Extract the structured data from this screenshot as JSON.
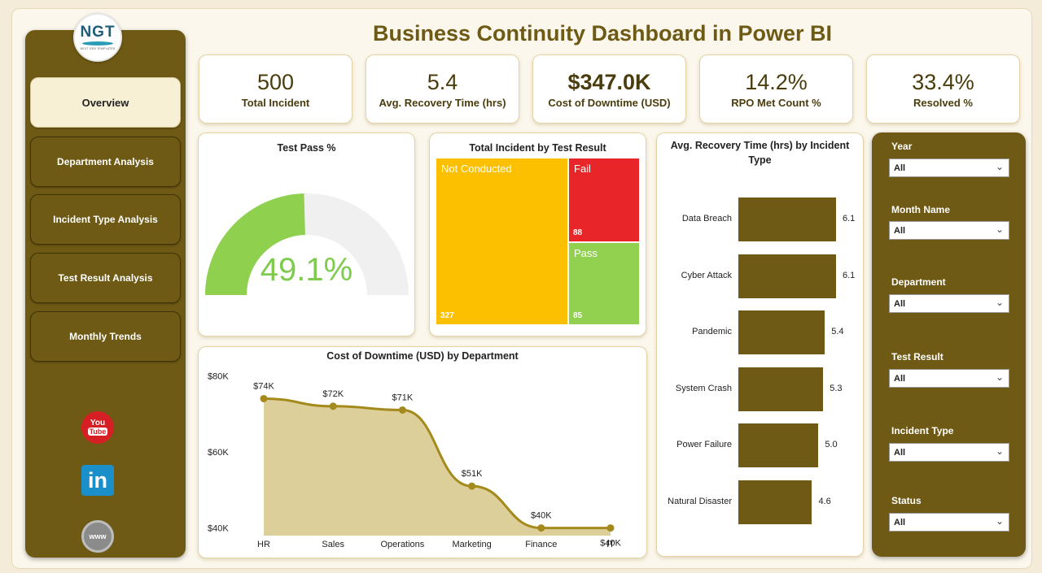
{
  "page": {
    "title": "Business Continuity Dashboard in Power BI"
  },
  "logo": {
    "text": "NGT",
    "subtext": "NEXT GEN TEMPLATES"
  },
  "nav": {
    "items": [
      {
        "label": "Overview",
        "active": true
      },
      {
        "label": "Department Analysis",
        "active": false
      },
      {
        "label": "Incident Type Analysis",
        "active": false
      },
      {
        "label": "Test Result Analysis",
        "active": false
      },
      {
        "label": "Monthly Trends",
        "active": false
      }
    ]
  },
  "social": {
    "youtube_top": "You",
    "youtube_bottom": "Tube",
    "linkedin": "in",
    "web": "www"
  },
  "kpis": [
    {
      "value": "500",
      "label": "Total Incident"
    },
    {
      "value": "5.4",
      "label": "Avg. Recovery Time (hrs)"
    },
    {
      "value": "$347.0K",
      "label": "Cost of Downtime (USD)"
    },
    {
      "value": "14.2%",
      "label": "RPO Met Count %"
    },
    {
      "value": "33.4%",
      "label": "Resolved %"
    }
  ],
  "test_pass": {
    "title": "Test Pass %",
    "value_label": "49.1%",
    "value": 0.491,
    "fill_color": "#8fd14f",
    "track_color": "#f0f0f0"
  },
  "treemap": {
    "title": "Total Incident by Test Result",
    "items": [
      {
        "label": "Not Conducted",
        "value": 327,
        "value_label": "327",
        "color": "#fcc000"
      },
      {
        "label": "Fail",
        "value": 88,
        "value_label": "88",
        "color": "#e8262a"
      },
      {
        "label": "Pass",
        "value": 85,
        "value_label": "85",
        "color": "#92d050"
      }
    ]
  },
  "recovery_chart": {
    "title": "Avg. Recovery Time (hrs) by Incident Type",
    "bar_color": "#6e5a14"
  },
  "downtime_chart": {
    "title": "Cost of Downtime (USD) by Department"
  },
  "chart_data": [
    {
      "type": "bar",
      "title": "Avg. Recovery Time (hrs) by Incident Type",
      "orientation": "horizontal",
      "categories": [
        "Data Breach",
        "Cyber Attack",
        "Pandemic",
        "System Crash",
        "Power Failure",
        "Natural Disaster"
      ],
      "values": [
        6.1,
        6.1,
        5.4,
        5.3,
        5.0,
        4.6
      ],
      "data_labels": [
        "6.1",
        "6.1",
        "5.4",
        "5.3",
        "5.0",
        "4.6"
      ]
    },
    {
      "type": "area",
      "title": "Cost of Downtime (USD) by Department",
      "categories": [
        "HR",
        "Sales",
        "Operations",
        "Marketing",
        "Finance",
        "IT"
      ],
      "values": [
        74000,
        72000,
        71000,
        51000,
        40000,
        40000
      ],
      "data_labels": [
        "$74K",
        "$72K",
        "$71K",
        "$51K",
        "$40K",
        "$40K"
      ],
      "ylim": [
        35000,
        82000
      ],
      "yticks": [
        {
          "value": 80000,
          "label": "$80K"
        },
        {
          "value": 60000,
          "label": "$60K"
        },
        {
          "value": 40000,
          "label": "$40K"
        }
      ],
      "line_color": "#a48a1c",
      "fill_color": "#dccf9a"
    }
  ],
  "slicers": [
    {
      "label": "Year",
      "value": "All"
    },
    {
      "label": "Month Name",
      "value": "All"
    },
    {
      "label": "Department",
      "value": "All"
    },
    {
      "label": "Test Result",
      "value": "All"
    },
    {
      "label": "Incident Type",
      "value": "All"
    },
    {
      "label": "Status",
      "value": "All"
    }
  ]
}
